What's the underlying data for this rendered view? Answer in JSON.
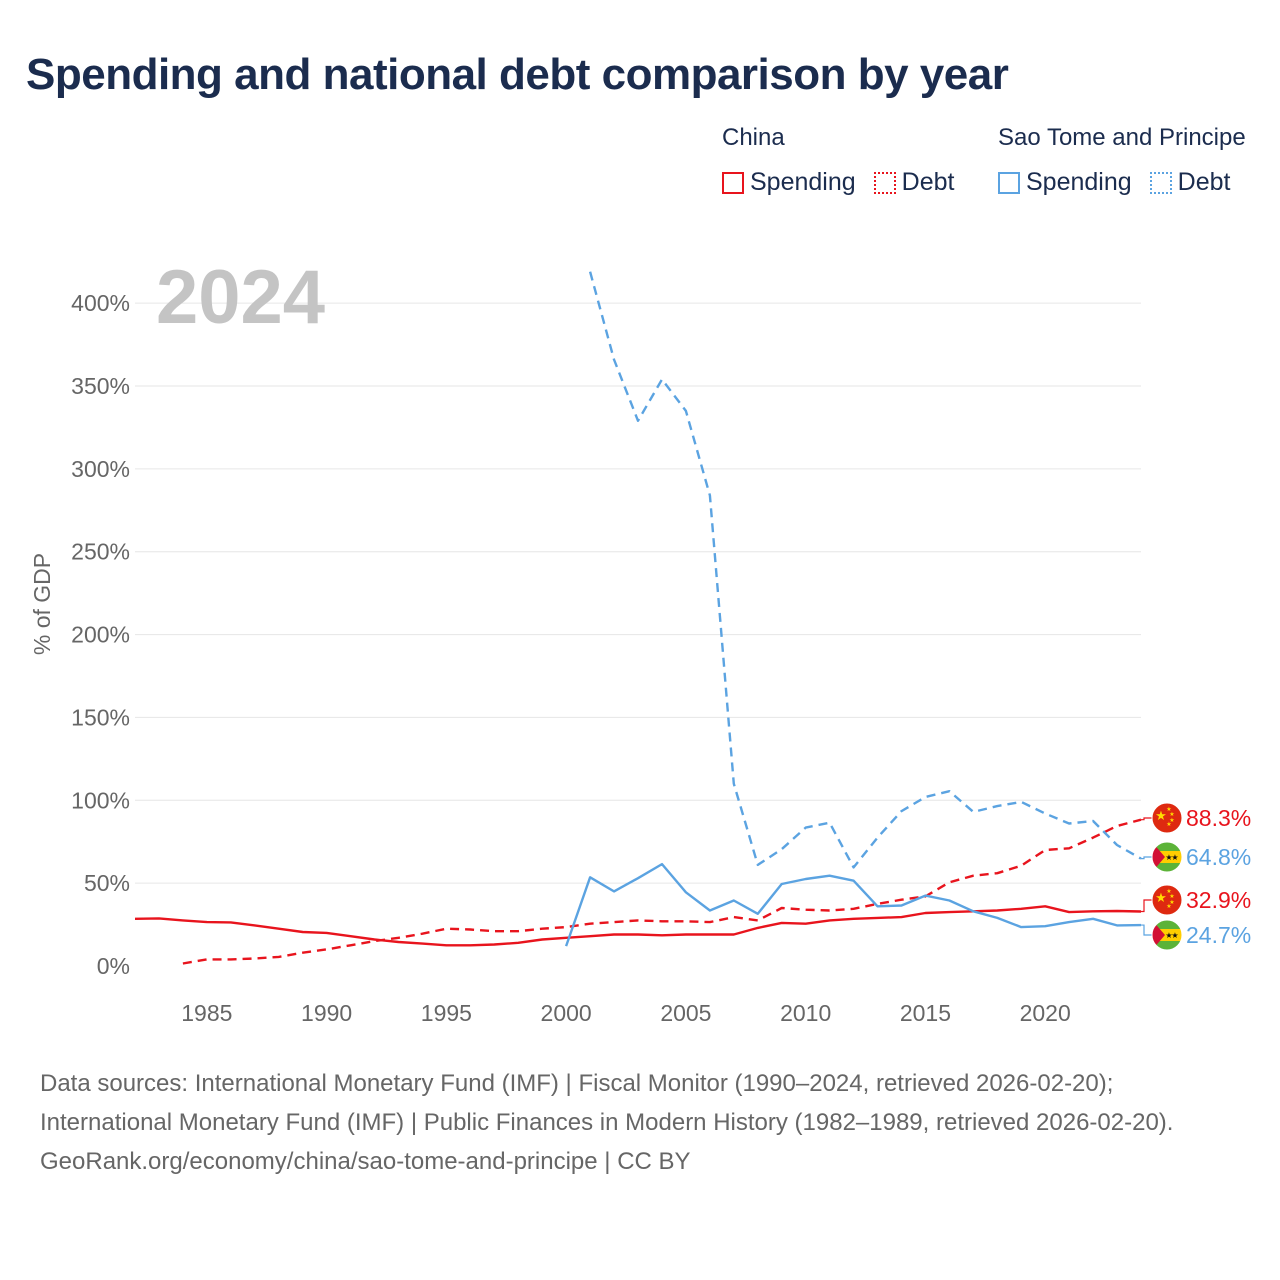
{
  "title": "Spending and national debt comparison by year",
  "colors": {
    "china": "#e8141d",
    "stp": "#5ba3e1",
    "title": "#1b2c4e",
    "axis_text": "#666666",
    "grid": "#e6e6e6",
    "year_watermark": "#c4c4c4"
  },
  "legend": [
    {
      "group": "China",
      "color": "#e8141d",
      "items": [
        {
          "label": "Spending",
          "style": "solid"
        },
        {
          "label": "Debt",
          "style": "dotted"
        }
      ]
    },
    {
      "group": "Sao Tome and Principe",
      "color": "#5ba3e1",
      "items": [
        {
          "label": "Spending",
          "style": "solid"
        },
        {
          "label": "Debt",
          "style": "dotted"
        }
      ]
    }
  ],
  "chart_data": {
    "type": "line",
    "year_label": "2024",
    "ylabel": "% of GDP",
    "xlabel": "",
    "xlim": [
      1982,
      2024
    ],
    "ylim": [
      0,
      420
    ],
    "yticks": [
      0,
      50,
      100,
      150,
      200,
      250,
      300,
      350,
      400
    ],
    "ytick_labels": [
      "0%",
      "50%",
      "100%",
      "150%",
      "200%",
      "250%",
      "300%",
      "350%",
      "400%"
    ],
    "xticks": [
      1985,
      1990,
      1995,
      2000,
      2005,
      2010,
      2015,
      2020
    ],
    "xtick_labels": [
      "1985",
      "1990",
      "1995",
      "2000",
      "2005",
      "2010",
      "2015",
      "2020"
    ],
    "grid": true,
    "series": [
      {
        "name": "China Spending",
        "country": "China",
        "measure": "Spending",
        "color": "#e8141d",
        "dash": "solid",
        "x": [
          1982,
          1983,
          1984,
          1985,
          1986,
          1987,
          1988,
          1989,
          1990,
          1991,
          1992,
          1993,
          1994,
          1995,
          1996,
          1997,
          1998,
          1999,
          2000,
          2001,
          2002,
          2003,
          2004,
          2005,
          2006,
          2007,
          2008,
          2009,
          2010,
          2011,
          2012,
          2013,
          2014,
          2015,
          2016,
          2017,
          2018,
          2019,
          2020,
          2021,
          2022,
          2023,
          2024
        ],
        "values": [
          28.5,
          28.7,
          27.5,
          26.5,
          26.3,
          24.5,
          22.5,
          20.5,
          20,
          18,
          16,
          14.5,
          13.5,
          12.5,
          12.5,
          13,
          14,
          16,
          17,
          18,
          19,
          19,
          18.5,
          19,
          19,
          19,
          23,
          26,
          25.5,
          27.5,
          28.5,
          29,
          29.5,
          32,
          32.5,
          33,
          33.5,
          34.5,
          36,
          32.5,
          33,
          33.2,
          32.9
        ],
        "end_label": "32.9%"
      },
      {
        "name": "China Debt",
        "country": "China",
        "measure": "Debt",
        "color": "#e8141d",
        "dash": "dashed",
        "x": [
          1984,
          1985,
          1986,
          1987,
          1988,
          1989,
          1990,
          1991,
          1992,
          1993,
          1994,
          1995,
          1996,
          1997,
          1998,
          1999,
          2000,
          2001,
          2002,
          2003,
          2004,
          2005,
          2006,
          2007,
          2008,
          2009,
          2010,
          2011,
          2012,
          2013,
          2014,
          2015,
          2016,
          2017,
          2018,
          2019,
          2020,
          2021,
          2022,
          2023,
          2024
        ],
        "values": [
          1.5,
          4,
          4,
          4.5,
          5.5,
          8,
          10,
          12.5,
          15,
          17,
          19.5,
          22.5,
          22,
          21,
          21,
          22.5,
          23.5,
          25.5,
          26.5,
          27.5,
          27,
          27,
          26.5,
          29.5,
          27.5,
          35,
          34,
          33.5,
          34.5,
          37.5,
          40,
          42,
          50.5,
          54.5,
          56,
          60.5,
          70,
          71,
          77.5,
          84.5,
          88.3
        ],
        "end_label": "88.3%"
      },
      {
        "name": "Sao Tome and Principe Spending",
        "country": "Sao Tome and Principe",
        "measure": "Spending",
        "color": "#5ba3e1",
        "dash": "solid",
        "x": [
          2000,
          2001,
          2002,
          2003,
          2004,
          2005,
          2006,
          2007,
          2008,
          2009,
          2010,
          2011,
          2012,
          2013,
          2014,
          2015,
          2016,
          2017,
          2018,
          2019,
          2020,
          2021,
          2022,
          2023,
          2024
        ],
        "values": [
          12,
          53.5,
          45,
          53,
          61.5,
          44.5,
          33.5,
          39.5,
          31.5,
          49.5,
          52.5,
          54.5,
          51.5,
          36,
          36.5,
          42.5,
          39.5,
          33,
          29,
          23.5,
          24,
          26.5,
          28.5,
          24.5,
          24.7
        ],
        "end_label": "24.7%"
      },
      {
        "name": "Sao Tome and Principe Debt",
        "country": "Sao Tome and Principe",
        "measure": "Debt",
        "color": "#5ba3e1",
        "dash": "dashed",
        "x": [
          2001,
          2002,
          2003,
          2004,
          2005,
          2006,
          2007,
          2008,
          2009,
          2010,
          2011,
          2012,
          2013,
          2014,
          2015,
          2016,
          2017,
          2018,
          2019,
          2020,
          2021,
          2022,
          2023,
          2024
        ],
        "values": [
          419,
          366,
          329,
          354,
          335,
          284,
          110,
          61,
          70.5,
          83.5,
          86.5,
          59.5,
          77.5,
          93.5,
          102,
          105.5,
          93,
          96.5,
          99,
          92,
          86,
          87.5,
          73,
          64.8
        ],
        "end_label": "64.8%"
      }
    ]
  },
  "footer": {
    "sources": "Data sources: International Monetary Fund (IMF) | Fiscal Monitor (1990–2024, retrieved 2026-02-20); International Monetary Fund (IMF) | Public Finances in Modern History (1982–1989, retrieved 2026-02-20).",
    "credit": "GeoRank.org/economy/china/sao-tome-and-principe | CC BY"
  }
}
